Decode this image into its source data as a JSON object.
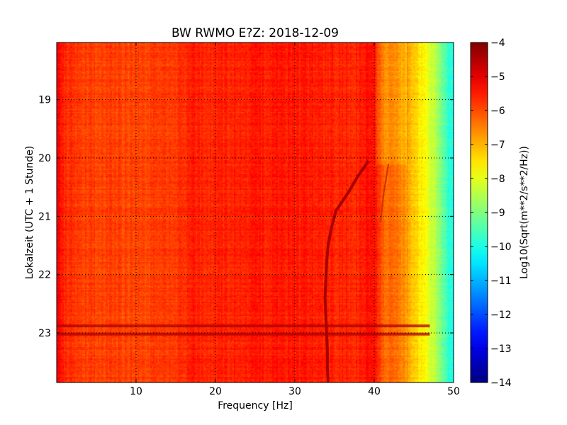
{
  "chart_data": {
    "type": "heatmap",
    "title": "BW RWMO E?Z: 2018-12-09",
    "xlabel": "Frequency [Hz]",
    "ylabel": "Lokalzeit (UTC + 1 Stunde)",
    "xlim": [
      0,
      50
    ],
    "ylim": [
      18.02,
      23.85
    ],
    "y_inverted": true,
    "grid": true,
    "grid_style": "dotted",
    "x_ticks": [
      10,
      20,
      30,
      40,
      50
    ],
    "x_tick_labels": [
      "10",
      "20",
      "30",
      "40",
      "50"
    ],
    "y_ticks": [
      19,
      20,
      21,
      22,
      23
    ],
    "y_tick_labels": [
      "19",
      "20",
      "21",
      "22",
      "23"
    ],
    "colormap": "jet",
    "colorbar": {
      "label": "Log10(Sqrt(m**2/s**2/Hz))",
      "range": [
        -14,
        -4
      ],
      "ticks": [
        -4,
        -5,
        -6,
        -7,
        -8,
        -9,
        -10,
        -11,
        -12,
        -13,
        -14
      ],
      "tick_labels": [
        "−4",
        "−5",
        "−6",
        "−7",
        "−8",
        "−9",
        "−10",
        "−11",
        "−12",
        "−13",
        "−14"
      ]
    },
    "spectral_level_vs_frequency": {
      "frequency_hz": [
        0,
        1,
        5,
        10,
        15,
        17,
        18,
        20,
        25,
        30,
        35,
        38,
        40,
        41,
        43,
        44,
        45,
        46,
        47,
        48,
        49,
        50
      ],
      "log10_amplitude": [
        -5.2,
        -5.7,
        -5.9,
        -5.9,
        -5.8,
        -5.5,
        -5.6,
        -5.6,
        -5.5,
        -5.5,
        -5.6,
        -5.6,
        -5.3,
        -6.2,
        -6.4,
        -6.8,
        -7.2,
        -7.7,
        -8.1,
        -8.8,
        -9.6,
        -10.2
      ]
    },
    "wandering_line": {
      "time": [
        20.05,
        20.3,
        20.6,
        20.9,
        21.2,
        21.5,
        21.8,
        22.1,
        22.4,
        22.7,
        23.0,
        23.3,
        23.6,
        23.85
      ],
      "frequency_hz": [
        39.3,
        38.0,
        36.7,
        35.2,
        34.6,
        34.2,
        34.0,
        33.9,
        33.8,
        33.9,
        34.0,
        34.1,
        34.1,
        34.2
      ]
    },
    "secondary_line": {
      "time": [
        20.1,
        20.6,
        21.1
      ],
      "frequency_hz": [
        41.8,
        41.2,
        40.8
      ]
    },
    "broadband_events": [
      22.88,
      23.02
    ]
  }
}
